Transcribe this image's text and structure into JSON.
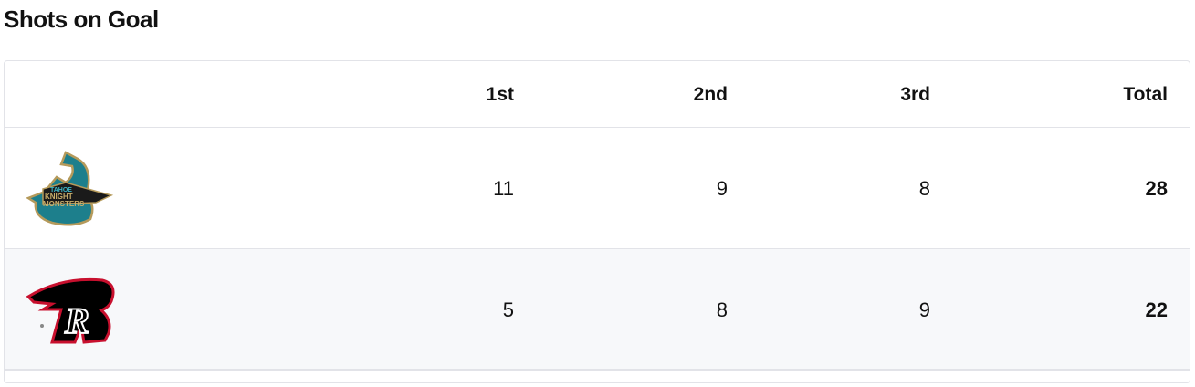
{
  "title": "Shots on Goal",
  "columns": [
    "",
    "1st",
    "2nd",
    "3rd",
    "Total"
  ],
  "rows": [
    {
      "team_logo": "tahoe-knight-monsters-logo",
      "logo_text": "TAHOE KNIGHT MONSTERS",
      "values": [
        "11",
        "9",
        "8"
      ],
      "total": "28"
    },
    {
      "team_logo": "rapid-city-rush-logo",
      "logo_text": "R",
      "values": [
        "5",
        "8",
        "9"
      ],
      "total": "22"
    }
  ],
  "colors": {
    "border": "#e2e3e8",
    "alt_row": "#f7f8fa",
    "teal": "#1d7f8c",
    "gold": "#b59a5b",
    "red": "#c8102e"
  }
}
